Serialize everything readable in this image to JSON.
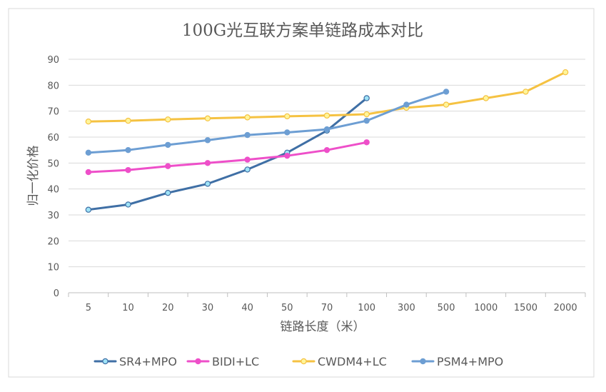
{
  "chart_data": {
    "type": "line",
    "title": "100G光互联方案单链路成本对比",
    "xlabel": "链路长度（米）",
    "ylabel": "归一化价格",
    "categories": [
      "5",
      "10",
      "20",
      "30",
      "40",
      "50",
      "70",
      "100",
      "300",
      "500",
      "1000",
      "1500",
      "2000"
    ],
    "ylim": [
      0,
      90
    ],
    "yticks": [
      0,
      10,
      20,
      30,
      40,
      50,
      60,
      70,
      80,
      90
    ],
    "grid": true,
    "legend_position": "bottom",
    "series": [
      {
        "name": "SR4+MPO",
        "color": "#3f6fa5",
        "marker_fill": "#9fe3f7",
        "marker_stroke": "#3f6fa5",
        "values": [
          32,
          34,
          38.5,
          42,
          47.5,
          54,
          62.5,
          75,
          null,
          null,
          null,
          null,
          null
        ]
      },
      {
        "name": "BIDI+LC",
        "color": "#ee4fc9",
        "marker_fill": "#ee4fc9",
        "marker_stroke": "#ee4fc9",
        "values": [
          46.5,
          47.3,
          48.8,
          50,
          51.3,
          52.8,
          55,
          58,
          null,
          null,
          null,
          null,
          null
        ]
      },
      {
        "name": "CWDM4+LC",
        "color": "#f5c242",
        "marker_fill": "#fff59a",
        "marker_stroke": "#f5c242",
        "values": [
          66,
          66.3,
          66.8,
          67.2,
          67.6,
          68,
          68.3,
          68.8,
          71.3,
          72.5,
          75,
          77.5,
          85
        ]
      },
      {
        "name": "PSM4+MPO",
        "color": "#6d9ed3",
        "marker_fill": "#6d9ed3",
        "marker_stroke": "#6d9ed3",
        "values": [
          54,
          55,
          57,
          58.8,
          60.8,
          61.8,
          63,
          66.3,
          72.5,
          77.5,
          null,
          null,
          null
        ]
      }
    ]
  }
}
